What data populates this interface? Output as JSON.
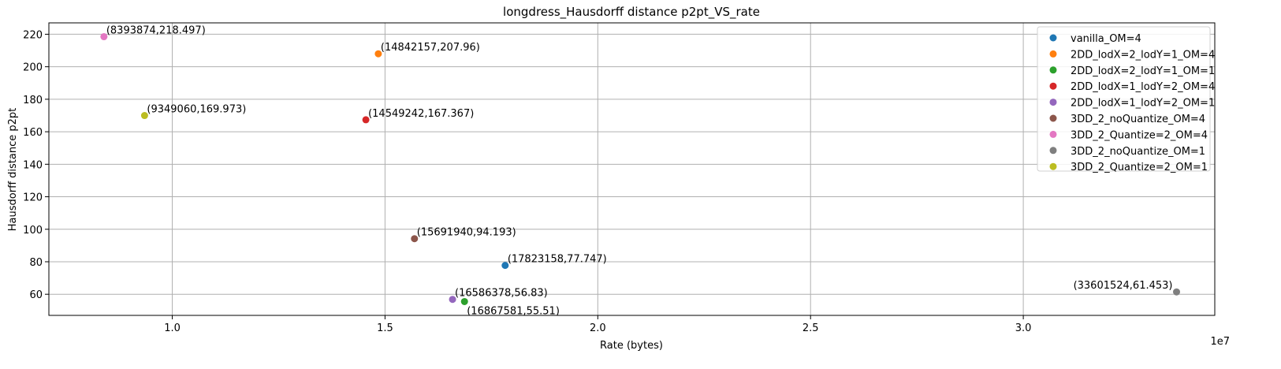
{
  "chart_data": {
    "type": "scatter",
    "title": "longdress_Hausdorff distance p2pt_VS_rate",
    "xlabel": "Rate (bytes)",
    "ylabel": "Hausdorff distance p2pt",
    "x_exponent_label": "1e7",
    "x_scale_factor": 10000000,
    "xlim": [
      7100000,
      34500000
    ],
    "ylim": [
      47,
      227
    ],
    "x_ticks": [
      10000000,
      15000000,
      20000000,
      25000000,
      30000000
    ],
    "x_tick_labels": [
      "1.0",
      "1.5",
      "2.0",
      "2.5",
      "3.0"
    ],
    "y_ticks": [
      60,
      80,
      100,
      120,
      140,
      160,
      180,
      200,
      220
    ],
    "y_tick_labels": [
      "60",
      "80",
      "100",
      "120",
      "140",
      "160",
      "180",
      "200",
      "220"
    ],
    "grid": true,
    "legend_position": "top-right",
    "series": [
      {
        "name": "vanilla_OM=4",
        "color": "#1f77b4",
        "x": 17823158,
        "y": 77.747,
        "label": "(17823158,77.747)",
        "label_pos": "upper-right"
      },
      {
        "name": "2DD_lodX=2_lodY=1_OM=4",
        "color": "#ff7f0e",
        "x": 14842157,
        "y": 207.96,
        "label": "(14842157,207.96)",
        "label_pos": "upper-right"
      },
      {
        "name": "2DD_lodX=2_lodY=1_OM=1",
        "color": "#2ca02c",
        "x": 16867581,
        "y": 55.51,
        "label": "(16867581,55.51)",
        "label_pos": "lower-right"
      },
      {
        "name": "2DD_lodX=1_lodY=2_OM=4",
        "color": "#d62728",
        "x": 14549242,
        "y": 167.367,
        "label": "(14549242,167.367)",
        "label_pos": "upper-right"
      },
      {
        "name": "2DD_lodX=1_lodY=2_OM=1",
        "color": "#9467bd",
        "x": 16586378,
        "y": 56.83,
        "label": "(16586378,56.83)",
        "label_pos": "upper-right"
      },
      {
        "name": "3DD_2_noQuantize_OM=4",
        "color": "#8c564b",
        "x": 15691940,
        "y": 94.193,
        "label": "(15691940,94.193)",
        "label_pos": "upper-right"
      },
      {
        "name": "3DD_2_Quantize=2_OM=4",
        "color": "#e377c2",
        "x": 8393874,
        "y": 218.497,
        "label": "(8393874,218.497)",
        "label_pos": "upper-right"
      },
      {
        "name": "3DD_2_noQuantize_OM=1",
        "color": "#7f7f7f",
        "x": 33601524,
        "y": 61.453,
        "label": "(33601524,61.453)",
        "label_pos": "upper-left"
      },
      {
        "name": "3DD_2_Quantize=2_OM=1",
        "color": "#bcbd22",
        "x": 9349060,
        "y": 169.973,
        "label": "(9349060,169.973)",
        "label_pos": "upper-right"
      }
    ]
  }
}
